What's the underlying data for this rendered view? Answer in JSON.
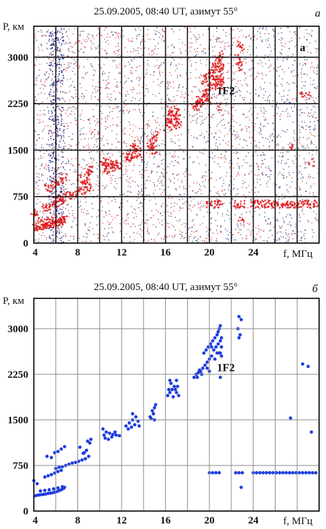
{
  "chart_data": [
    {
      "type": "heatmap",
      "panel": "а",
      "title": "25.09.2005, 08:40 UT, азимут 55°",
      "ylabel": "P, км",
      "xlabel": "f, МГц",
      "xlim": [
        4,
        30
      ],
      "ylim": [
        0,
        3500
      ],
      "x_ticks": [
        4,
        8,
        12,
        16,
        20,
        24
      ],
      "y_ticks": [
        0,
        750,
        1500,
        2250,
        3000
      ],
      "grid": true,
      "annotations": [
        {
          "text": "1F2",
          "x": 21.5,
          "y": 2400
        },
        {
          "text": "a",
          "x": 28.5,
          "y": 3100
        }
      ],
      "colors": {
        "noise": "#1b1f7a",
        "signal": "#e21b1b",
        "frame": "#1a1a1a"
      }
    },
    {
      "type": "scatter",
      "panel": "б",
      "title": "25.09.2005, 08:40 UT, азимут 55°",
      "ylabel": "P, км",
      "xlabel": "f, МГц",
      "xlim": [
        4,
        30
      ],
      "ylim": [
        0,
        3500
      ],
      "x_ticks": [
        4,
        8,
        12,
        16,
        20,
        24
      ],
      "y_ticks": [
        0,
        750,
        1500,
        2250,
        3000
      ],
      "grid": true,
      "annotations": [
        {
          "text": "1F2",
          "x": 21.5,
          "y": 2300
        }
      ],
      "colors": {
        "points": "#1e3de0",
        "frame": "#1a1a1a"
      },
      "series": [
        {
          "points": [
            [
              4.1,
              250
            ],
            [
              4.3,
              260
            ],
            [
              4.5,
              265
            ],
            [
              4.7,
              270
            ],
            [
              4.9,
              275
            ],
            [
              5.1,
              280
            ],
            [
              5.3,
              290
            ],
            [
              5.5,
              295
            ],
            [
              5.7,
              300
            ],
            [
              5.9,
              310
            ],
            [
              6.1,
              320
            ],
            [
              6.3,
              335
            ],
            [
              6.5,
              350
            ],
            [
              6.7,
              370
            ],
            [
              6.8,
              390
            ],
            [
              4.6,
              330
            ],
            [
              5.0,
              340
            ],
            [
              5.4,
              350
            ],
            [
              5.8,
              365
            ],
            [
              6.2,
              380
            ],
            [
              6.6,
              400
            ],
            [
              5.0,
              560
            ],
            [
              5.3,
              580
            ],
            [
              5.6,
              600
            ],
            [
              5.9,
              625
            ],
            [
              6.2,
              650
            ],
            [
              6.5,
              670
            ],
            [
              6.0,
              700
            ],
            [
              6.3,
              720
            ],
            [
              6.6,
              730
            ],
            [
              6.9,
              750
            ],
            [
              7.2,
              770
            ],
            [
              7.5,
              790
            ],
            [
              7.8,
              800
            ],
            [
              8.1,
              820
            ],
            [
              8.4,
              840
            ],
            [
              8.7,
              860
            ],
            [
              9.0,
              900
            ],
            [
              8.5,
              950
            ],
            [
              8.8,
              1000
            ],
            [
              8.2,
              1050
            ],
            [
              5.2,
              900
            ],
            [
              5.6,
              880
            ],
            [
              5.9,
              960
            ],
            [
              6.2,
              980
            ],
            [
              6.5,
              1020
            ],
            [
              6.8,
              1060
            ],
            [
              4.0,
              500
            ],
            [
              4.3,
              450
            ],
            [
              8.9,
              1150
            ],
            [
              9.2,
              1180
            ],
            [
              9.1,
              1120
            ],
            [
              8.6,
              960
            ],
            [
              10.3,
              1350
            ],
            [
              10.6,
              1300
            ],
            [
              10.9,
              1280
            ],
            [
              11.2,
              1260
            ],
            [
              11.5,
              1250
            ],
            [
              11.8,
              1240
            ],
            [
              10.5,
              1200
            ],
            [
              10.8,
              1180
            ],
            [
              11.1,
              1220
            ],
            [
              11.4,
              1300
            ],
            [
              10.4,
              1250
            ],
            [
              12.4,
              1400
            ],
            [
              12.7,
              1450
            ],
            [
              13.0,
              1500
            ],
            [
              13.3,
              1550
            ],
            [
              13.5,
              1480
            ],
            [
              12.6,
              1350
            ],
            [
              12.9,
              1380
            ],
            [
              13.2,
              1420
            ],
            [
              13.6,
              1400
            ],
            [
              13.0,
              1600
            ],
            [
              14.6,
              1550
            ],
            [
              14.8,
              1650
            ],
            [
              15.0,
              1700
            ],
            [
              15.1,
              1750
            ],
            [
              14.9,
              1600
            ],
            [
              14.7,
              1520
            ],
            [
              15.0,
              1500
            ],
            [
              16.2,
              1900
            ],
            [
              16.4,
              1950
            ],
            [
              16.6,
              2000
            ],
            [
              16.8,
              2050
            ],
            [
              17.0,
              1950
            ],
            [
              17.2,
              1900
            ],
            [
              16.5,
              2100
            ],
            [
              16.9,
              2000
            ],
            [
              17.1,
              2050
            ],
            [
              16.3,
              2000
            ],
            [
              16.7,
              1880
            ],
            [
              17.0,
              2150
            ],
            [
              16.4,
              2150
            ],
            [
              18.6,
              2200
            ],
            [
              18.8,
              2250
            ],
            [
              19.0,
              2280
            ],
            [
              19.2,
              2300
            ],
            [
              19.4,
              2350
            ],
            [
              19.6,
              2400
            ],
            [
              19.8,
              2450
            ],
            [
              20.0,
              2500
            ],
            [
              20.2,
              2550
            ],
            [
              19.5,
              2600
            ],
            [
              19.7,
              2650
            ],
            [
              19.9,
              2700
            ],
            [
              20.1,
              2750
            ],
            [
              20.3,
              2800
            ],
            [
              20.5,
              2850
            ],
            [
              20.7,
              2900
            ],
            [
              20.8,
              2950
            ],
            [
              20.9,
              3000
            ],
            [
              21.0,
              3050
            ],
            [
              20.4,
              2650
            ],
            [
              20.6,
              2700
            ],
            [
              20.8,
              2750
            ],
            [
              21.0,
              2800
            ],
            [
              21.1,
              2700
            ],
            [
              20.9,
              2600
            ],
            [
              20.5,
              2500
            ],
            [
              19.8,
              2350
            ],
            [
              19.3,
              2250
            ],
            [
              18.9,
              2200
            ],
            [
              21.0,
              2600
            ],
            [
              20.2,
              2700
            ],
            [
              21.1,
              2550
            ],
            [
              20.0,
              2300
            ],
            [
              19.1,
              2320
            ],
            [
              20.7,
              2600
            ],
            [
              21.1,
              2850
            ],
            [
              21.0,
              2200
            ],
            [
              22.7,
              3200
            ],
            [
              22.9,
              3150
            ],
            [
              22.6,
              3000
            ],
            [
              22.8,
              2900
            ],
            [
              22.7,
              2850
            ],
            [
              22.9,
              390
            ],
            [
              20.0,
              630
            ],
            [
              20.3,
              630
            ],
            [
              20.6,
              630
            ],
            [
              20.9,
              630
            ],
            [
              22.4,
              630
            ],
            [
              22.7,
              630
            ],
            [
              23.0,
              630
            ],
            [
              24.0,
              630
            ],
            [
              24.3,
              630
            ],
            [
              24.6,
              630
            ],
            [
              24.9,
              630
            ],
            [
              25.2,
              630
            ],
            [
              25.5,
              630
            ],
            [
              25.8,
              630
            ],
            [
              26.1,
              630
            ],
            [
              26.4,
              630
            ],
            [
              26.7,
              630
            ],
            [
              27.0,
              630
            ],
            [
              27.3,
              630
            ],
            [
              27.6,
              630
            ],
            [
              27.9,
              630
            ],
            [
              28.2,
              630
            ],
            [
              28.5,
              630
            ],
            [
              28.8,
              630
            ],
            [
              29.1,
              630
            ],
            [
              29.4,
              630
            ],
            [
              29.7,
              630
            ],
            [
              27.4,
              1530
            ],
            [
              28.5,
              2420
            ],
            [
              29.0,
              2380
            ],
            [
              29.3,
              1300
            ]
          ]
        }
      ]
    }
  ]
}
